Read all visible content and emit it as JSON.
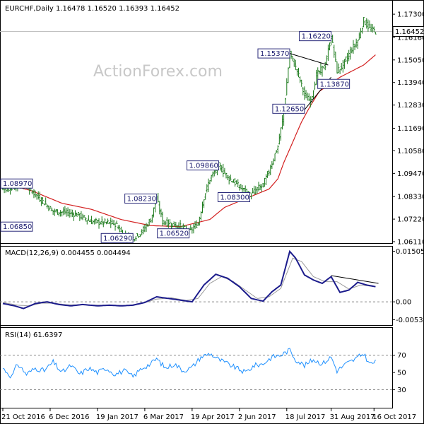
{
  "watermark": "ActionForex.com",
  "chart_data": [
    {
      "type": "candlestick",
      "title": "EURCHF,Daily  1.16478 1.16520 1.16393 1.16452",
      "ylim": [
        1.0611,
        1.1772
      ],
      "y_ticks": [
        "1.17300",
        "1.16160",
        "1.15050",
        "1.13940",
        "1.12830",
        "1.11690",
        "1.10580",
        "1.09470",
        "1.08330",
        "1.07220",
        "1.06110"
      ],
      "current_price": "1.16452",
      "x_ticks": [
        "21 Oct 2016",
        "6 Dec 2016",
        "19 Jan 2017",
        "6 Mar 2017",
        "19 Apr 2017",
        "2 Jun 2017",
        "18 Jul 2017",
        "31 Aug 2017",
        "16 Oct 2017"
      ],
      "bars_total": 260,
      "price_path": [
        [
          0,
          1.087
        ],
        [
          8,
          1.088
        ],
        [
          14,
          1.0897
        ],
        [
          24,
          1.083
        ],
        [
          34,
          1.076
        ],
        [
          42,
          1.0755
        ],
        [
          50,
          1.0745
        ],
        [
          60,
          1.071
        ],
        [
          68,
          1.0705
        ],
        [
          76,
          1.07
        ],
        [
          82,
          1.064
        ],
        [
          88,
          1.0629
        ],
        [
          94,
          1.066
        ],
        [
          100,
          1.072
        ],
        [
          104,
          1.0823
        ],
        [
          108,
          1.071
        ],
        [
          113,
          1.07
        ],
        [
          120,
          1.0685
        ],
        [
          126,
          1.066
        ],
        [
          132,
          1.07
        ],
        [
          136,
          1.083
        ],
        [
          140,
          1.092
        ],
        [
          146,
          1.0986
        ],
        [
          152,
          1.093
        ],
        [
          160,
          1.088
        ],
        [
          167,
          1.084
        ],
        [
          172,
          1.087
        ],
        [
          176,
          1.089
        ],
        [
          180,
          1.096
        ],
        [
          186,
          1.108
        ],
        [
          190,
          1.125
        ],
        [
          194,
          1.1537
        ],
        [
          199,
          1.145
        ],
        [
          204,
          1.133
        ],
        [
          208,
          1.13
        ],
        [
          212,
          1.143
        ],
        [
          218,
          1.148
        ],
        [
          222,
          1.1622
        ],
        [
          226,
          1.145
        ],
        [
          230,
          1.148
        ],
        [
          236,
          1.156
        ],
        [
          240,
          1.16
        ],
        [
          244,
          1.17
        ],
        [
          248,
          1.166
        ],
        [
          252,
          1.1645
        ]
      ],
      "ma_path": [
        [
          0,
          1.09
        ],
        [
          20,
          1.086
        ],
        [
          40,
          1.08
        ],
        [
          60,
          1.077
        ],
        [
          80,
          1.072
        ],
        [
          100,
          1.069
        ],
        [
          120,
          1.0685
        ],
        [
          140,
          1.072
        ],
        [
          150,
          1.078
        ],
        [
          160,
          1.081
        ],
        [
          170,
          1.084
        ],
        [
          180,
          1.087
        ],
        [
          186,
          1.092
        ],
        [
          190,
          1.1
        ],
        [
          196,
          1.11
        ],
        [
          202,
          1.12
        ],
        [
          208,
          1.128
        ],
        [
          214,
          1.135
        ],
        [
          220,
          1.138
        ],
        [
          228,
          1.142
        ],
        [
          236,
          1.145
        ],
        [
          244,
          1.148
        ],
        [
          252,
          1.153
        ]
      ],
      "annotations": [
        {
          "label": "1.08970",
          "value": 1.0897,
          "bar": 14,
          "side": "left"
        },
        {
          "label": "1.06850",
          "value": 1.0685,
          "bar": 2,
          "side": "left"
        },
        {
          "label": "1.06290",
          "value": 1.0629,
          "bar": 88,
          "side": "left"
        },
        {
          "label": "1.08230",
          "value": 1.0823,
          "bar": 104,
          "side": "left"
        },
        {
          "label": "1.06520",
          "value": 1.0652,
          "bar": 126,
          "side": "left"
        },
        {
          "label": "1.09860",
          "value": 1.0986,
          "bar": 146,
          "side": "left"
        },
        {
          "label": "1.08300",
          "value": 1.083,
          "bar": 167,
          "side": "left"
        },
        {
          "label": "1.15370",
          "value": 1.1537,
          "bar": 194,
          "side": "left"
        },
        {
          "label": "1.12650",
          "value": 1.1265,
          "bar": 204,
          "side": "left"
        },
        {
          "label": "1.13870",
          "value": 1.1387,
          "bar": 212,
          "side": "right"
        },
        {
          "label": "1.16220",
          "value": 1.1622,
          "bar": 222,
          "side": "left"
        }
      ],
      "trendlines": [
        {
          "from": [
            194,
            1.1537
          ],
          "to": [
            220,
            1.148
          ]
        },
        {
          "from": [
            204,
            1.126
          ],
          "to": [
            222,
            1.142
          ]
        }
      ]
    },
    {
      "type": "line",
      "title": "MACD(12,26,9) 0.004455 0.004494",
      "ylim": [
        -0.0065,
        0.0158
      ],
      "y_ticks": [
        "0.015052",
        "0.00",
        "-0.005321"
      ],
      "macd_path": [
        [
          0,
          -0.0005
        ],
        [
          8,
          -0.0012
        ],
        [
          14,
          -0.002
        ],
        [
          22,
          -0.0005
        ],
        [
          30,
          0.0
        ],
        [
          38,
          -0.0008
        ],
        [
          46,
          -0.0012
        ],
        [
          54,
          -0.0008
        ],
        [
          64,
          -0.0012
        ],
        [
          72,
          -0.001
        ],
        [
          80,
          -0.0012
        ],
        [
          88,
          -0.001
        ],
        [
          96,
          -0.0002
        ],
        [
          104,
          0.0015
        ],
        [
          112,
          0.001
        ],
        [
          120,
          0.0005
        ],
        [
          128,
          0.0
        ],
        [
          136,
          0.005
        ],
        [
          144,
          0.0082
        ],
        [
          152,
          0.007
        ],
        [
          160,
          0.0045
        ],
        [
          168,
          0.001
        ],
        [
          176,
          0.0002
        ],
        [
          182,
          0.003
        ],
        [
          188,
          0.005
        ],
        [
          194,
          0.015
        ],
        [
          198,
          0.013
        ],
        [
          204,
          0.008
        ],
        [
          210,
          0.0065
        ],
        [
          216,
          0.0055
        ],
        [
          222,
          0.0075
        ],
        [
          228,
          0.0028
        ],
        [
          234,
          0.0035
        ],
        [
          240,
          0.0058
        ],
        [
          246,
          0.005
        ],
        [
          252,
          0.0045
        ]
      ],
      "signal_path": [
        [
          0,
          -0.0002
        ],
        [
          10,
          -0.001
        ],
        [
          18,
          -0.0012
        ],
        [
          26,
          -0.0004
        ],
        [
          34,
          -0.0004
        ],
        [
          44,
          -0.0009
        ],
        [
          54,
          -0.0009
        ],
        [
          64,
          -0.001
        ],
        [
          74,
          -0.001
        ],
        [
          84,
          -0.0011
        ],
        [
          94,
          -0.0005
        ],
        [
          104,
          0.0008
        ],
        [
          114,
          0.0012
        ],
        [
          124,
          0.0004
        ],
        [
          132,
          0.001
        ],
        [
          140,
          0.0055
        ],
        [
          148,
          0.0075
        ],
        [
          156,
          0.006
        ],
        [
          164,
          0.0035
        ],
        [
          172,
          0.001
        ],
        [
          180,
          0.0015
        ],
        [
          188,
          0.004
        ],
        [
          196,
          0.013
        ],
        [
          202,
          0.012
        ],
        [
          210,
          0.0075
        ],
        [
          218,
          0.006
        ],
        [
          226,
          0.006
        ],
        [
          234,
          0.0038
        ],
        [
          242,
          0.005
        ],
        [
          252,
          0.0045
        ]
      ],
      "trendlines": [
        {
          "from": [
            222,
            0.0078
          ],
          "to": [
            254,
            0.0055
          ]
        }
      ]
    },
    {
      "type": "line",
      "title": "RSI(14) 61.6397",
      "ylim": [
        10,
        100
      ],
      "y_ticks": [
        "70",
        "50",
        "30"
      ],
      "levels": [
        70,
        30
      ],
      "rsi_path": [
        [
          0,
          55
        ],
        [
          6,
          45
        ],
        [
          10,
          60
        ],
        [
          16,
          48
        ],
        [
          22,
          55
        ],
        [
          28,
          52
        ],
        [
          34,
          62
        ],
        [
          40,
          50
        ],
        [
          46,
          58
        ],
        [
          52,
          48
        ],
        [
          58,
          55
        ],
        [
          64,
          50
        ],
        [
          70,
          55
        ],
        [
          76,
          48
        ],
        [
          82,
          52
        ],
        [
          88,
          45
        ],
        [
          94,
          55
        ],
        [
          100,
          60
        ],
        [
          104,
          66
        ],
        [
          110,
          55
        ],
        [
          116,
          60
        ],
        [
          122,
          52
        ],
        [
          128,
          56
        ],
        [
          134,
          68
        ],
        [
          140,
          72
        ],
        [
          146,
          65
        ],
        [
          152,
          60
        ],
        [
          158,
          55
        ],
        [
          164,
          50
        ],
        [
          170,
          58
        ],
        [
          176,
          60
        ],
        [
          182,
          68
        ],
        [
          188,
          70
        ],
        [
          194,
          76
        ],
        [
          198,
          65
        ],
        [
          204,
          58
        ],
        [
          210,
          65
        ],
        [
          216,
          60
        ],
        [
          222,
          68
        ],
        [
          226,
          52
        ],
        [
          232,
          60
        ],
        [
          238,
          65
        ],
        [
          244,
          72
        ],
        [
          248,
          60
        ],
        [
          252,
          62
        ]
      ]
    }
  ]
}
